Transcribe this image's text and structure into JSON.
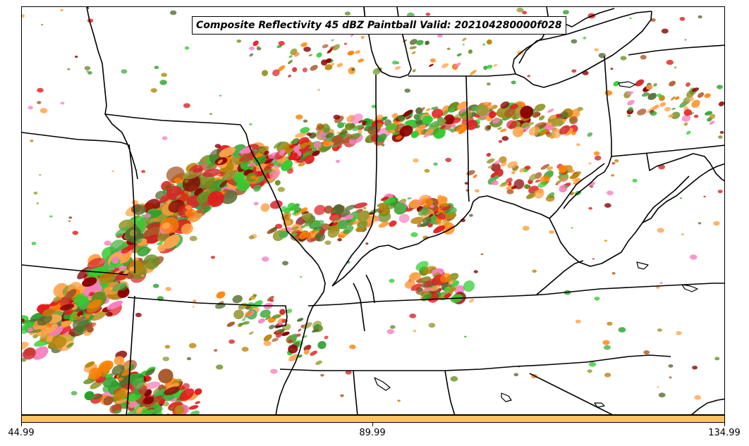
{
  "title": "Composite Reflectivity 45 dBZ Paintball Valid: 202104280000f028",
  "colorbar": {
    "color": "#ffc266",
    "ticks": [
      "44.99",
      "89.99",
      "134.99"
    ]
  },
  "map": {
    "boundary_color": "#000000",
    "member_colors": [
      "#e41a1c",
      "#ff7f00",
      "#4daf4a",
      "#a65628",
      "#f781bf",
      "#999933",
      "#2ca02c",
      "#d62728",
      "#ff9f40",
      "#6b8e23",
      "#b8860b",
      "#8b0000",
      "#32cd32",
      "#ffa54f",
      "#556b2f"
    ],
    "regions": [
      "Missouri",
      "Illinois",
      "Indiana",
      "Ohio",
      "Kentucky",
      "Tennessee",
      "Arkansas",
      "West Virginia",
      "Iowa",
      "Michigan",
      "Pennsylvania",
      "Lake Michigan",
      "Lake Erie"
    ]
  }
}
